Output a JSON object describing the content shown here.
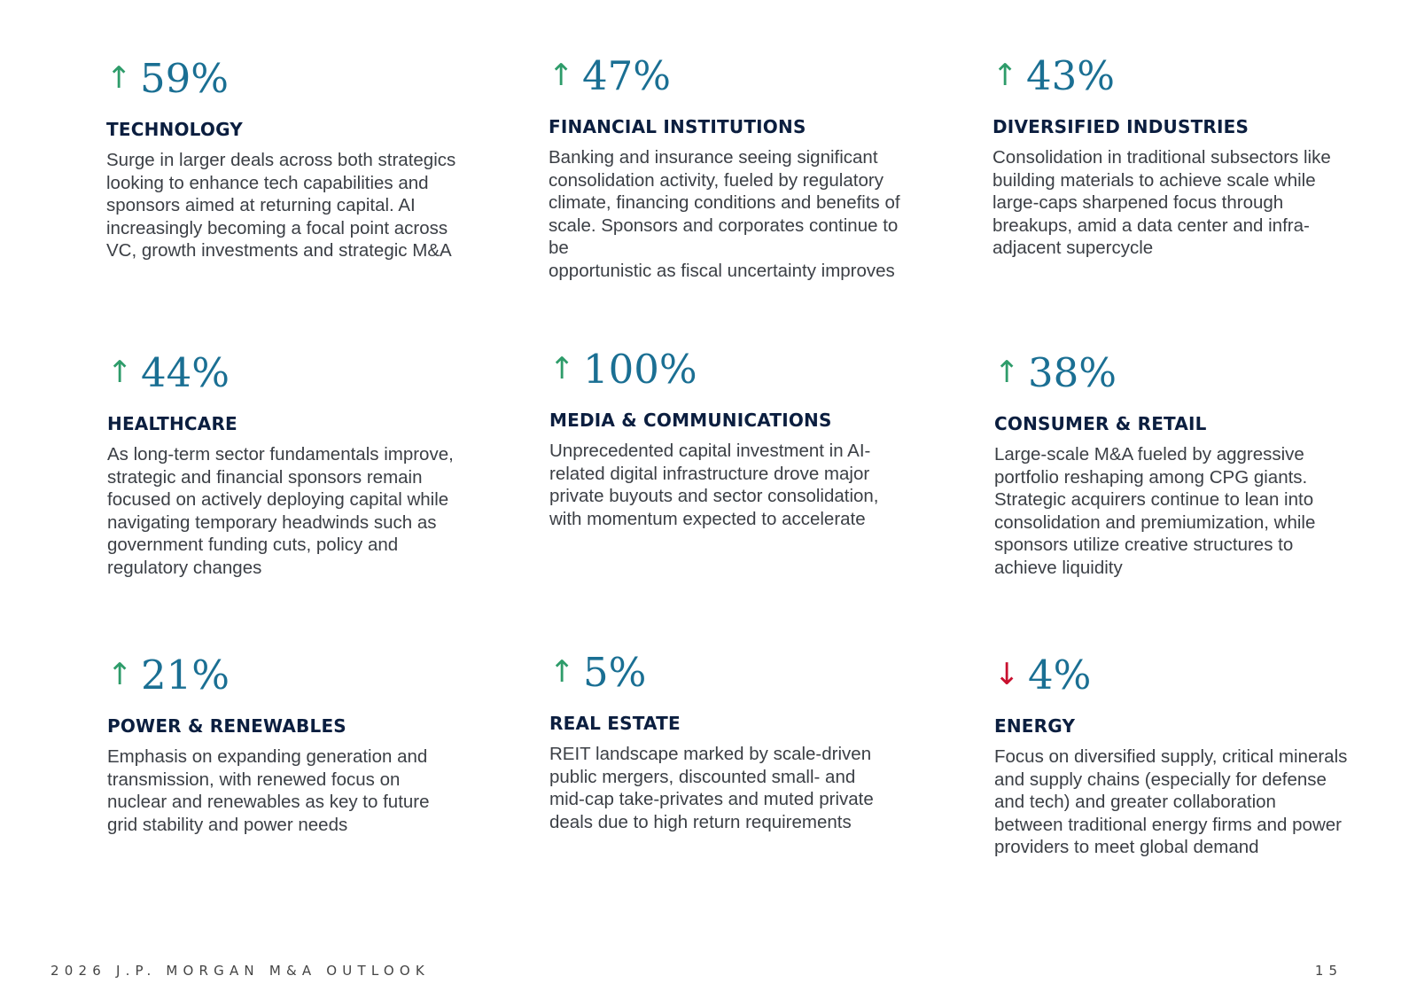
{
  "sectors": [
    {
      "arrow": "↑",
      "direction": "up",
      "percent": "59%",
      "title": "TECHNOLOGY",
      "lines": [
        "Surge in larger deals across both strategics",
        "looking to enhance tech capabilities and",
        "sponsors aimed at returning capital. AI",
        "increasingly becoming a focal point across",
        "VC, growth investments and strategic M&A"
      ]
    },
    {
      "arrow": "↑",
      "direction": "up",
      "percent": "47%",
      "title": "FINANCIAL INSTITUTIONS",
      "lines": [
        "Banking and insurance seeing significant",
        "consolidation activity, fueled by regulatory",
        "climate, financing conditions and benefits of",
        "scale. Sponsors and corporates continue to be",
        "opportunistic as fiscal uncertainty improves"
      ]
    },
    {
      "arrow": "↑",
      "direction": "up",
      "percent": "43%",
      "title": "DIVERSIFIED INDUSTRIES",
      "lines": [
        "Consolidation in traditional subsectors like",
        "building materials to achieve scale while",
        "large-caps sharpened focus through",
        "breakups, amid a data center and infra-",
        "adjacent supercycle"
      ]
    },
    {
      "arrow": "↑",
      "direction": "up",
      "percent": "44%",
      "title": "HEALTHCARE",
      "lines": [
        "As long-term sector fundamentals improve,",
        "strategic and financial sponsors remain",
        "focused on actively deploying capital while",
        "navigating temporary headwinds such as",
        "government funding cuts, policy and",
        "regulatory changes"
      ]
    },
    {
      "arrow": "↑",
      "direction": "up",
      "percent": "100%",
      "title": "MEDIA & COMMUNICATIONS",
      "lines": [
        "Unprecedented capital investment in AI-",
        "related digital infrastructure drove major",
        "private buyouts and sector consolidation,",
        "with momentum expected to accelerate"
      ]
    },
    {
      "arrow": "↑",
      "direction": "up",
      "percent": "38%",
      "title": "CONSUMER & RETAIL",
      "lines": [
        "Large-scale M&A fueled by aggressive",
        "portfolio reshaping among CPG giants.",
        "Strategic acquirers continue to lean into",
        "consolidation and premiumization, while",
        "sponsors utilize creative structures to",
        "achieve liquidity"
      ]
    },
    {
      "arrow": "↑",
      "direction": "up",
      "percent": "21%",
      "title": "POWER & RENEWABLES",
      "lines": [
        "Emphasis on expanding generation and",
        "transmission, with renewed focus on",
        "nuclear and renewables as key to future",
        "grid stability and power needs"
      ]
    },
    {
      "arrow": "↑",
      "direction": "up",
      "percent": "5%",
      "title": "REAL ESTATE",
      "lines": [
        "REIT landscape marked by scale-driven",
        "public mergers, discounted small- and",
        "mid-cap take-privates and muted private",
        "deals due to high return requirements"
      ]
    },
    {
      "arrow": "↓",
      "direction": "down",
      "percent": "4%",
      "title": "ENERGY",
      "lines": [
        "Focus on diversified supply, critical minerals",
        "and supply chains (especially for defense",
        "and tech) and greater collaboration",
        "between traditional energy firms and power",
        "providers to meet global demand"
      ]
    }
  ],
  "footer": {
    "publication": "2026 J.P. MORGAN M&A OUTLOOK",
    "page_number": "15"
  },
  "colors": {
    "up_arrow": "#2e9c6a",
    "down_arrow": "#c8102e",
    "percent": "#1a6f93",
    "title": "#0b1e3f",
    "body_text": "#3b3f45"
  }
}
